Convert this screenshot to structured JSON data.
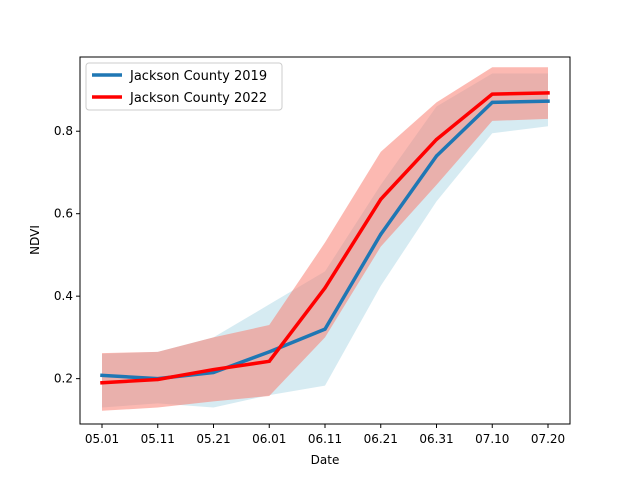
{
  "chart_data": {
    "type": "line",
    "title": "",
    "xlabel": "Date",
    "ylabel": "NDVI",
    "categories": [
      "05.01",
      "05.11",
      "05.21",
      "06.01",
      "06.11",
      "06.21",
      "06.31",
      "07.10",
      "07.20"
    ],
    "ylim": [
      0.09,
      0.98
    ],
    "yticks": [
      0.2,
      0.4,
      0.6,
      0.8
    ],
    "ytick_labels": [
      "0.2",
      "0.4",
      "0.6",
      "0.8"
    ],
    "grid": false,
    "legend_position": "top-left",
    "series": [
      {
        "name": "Jackson County 2019",
        "color": "#1f77b4",
        "band_color": "#add8e6",
        "values": [
          0.208,
          0.2,
          0.215,
          0.265,
          0.32,
          0.55,
          0.74,
          0.87,
          0.873
        ],
        "lower": [
          0.13,
          0.14,
          0.13,
          0.16,
          0.183,
          0.425,
          0.63,
          0.795,
          0.812
        ],
        "upper": [
          0.26,
          0.265,
          0.3,
          0.38,
          0.46,
          0.67,
          0.86,
          0.94,
          0.94
        ]
      },
      {
        "name": "Jackson County 2022",
        "color": "#ff0000",
        "band_color": "#fa8072",
        "values": [
          0.19,
          0.198,
          0.222,
          0.242,
          0.42,
          0.635,
          0.78,
          0.89,
          0.893
        ],
        "lower": [
          0.122,
          0.13,
          0.145,
          0.158,
          0.3,
          0.52,
          0.67,
          0.825,
          0.83
        ],
        "upper": [
          0.262,
          0.265,
          0.3,
          0.33,
          0.53,
          0.75,
          0.87,
          0.955,
          0.955
        ]
      }
    ]
  }
}
